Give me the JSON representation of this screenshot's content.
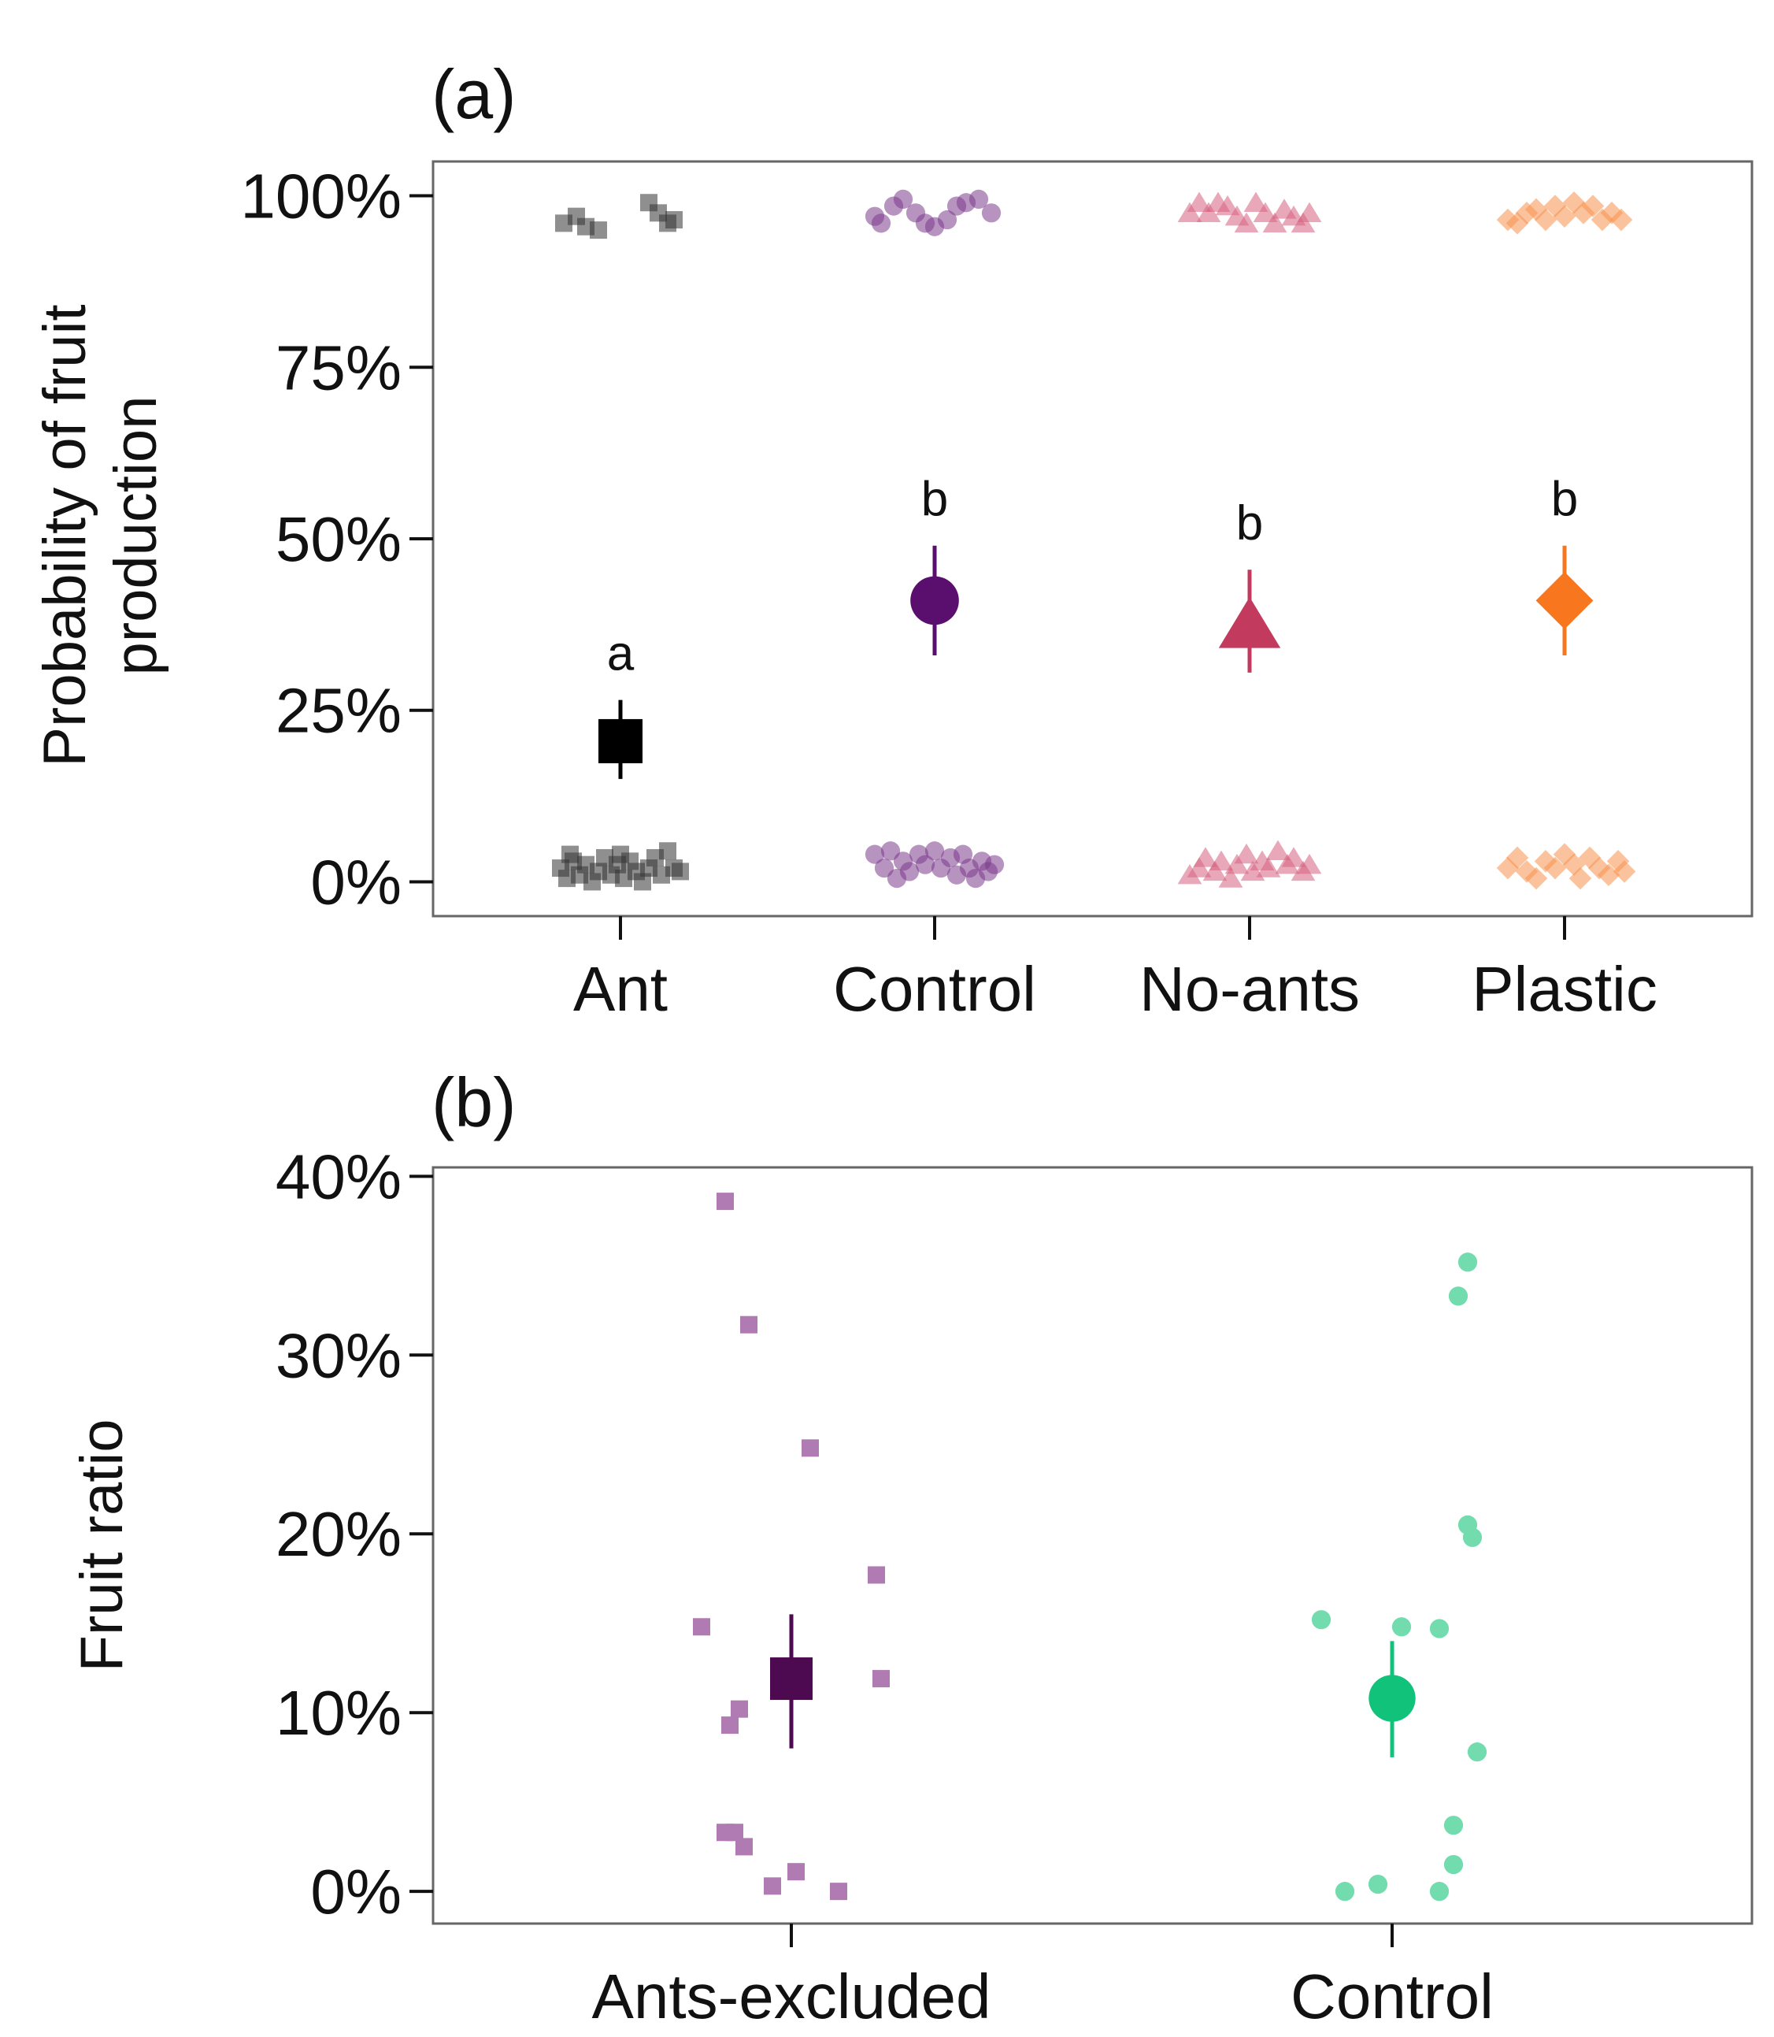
{
  "chart_data": [
    {
      "id": "a",
      "panel_label": "(a)",
      "type": "scatter",
      "ylabel": [
        "Probability of fruit",
        "production"
      ],
      "xlabel": "",
      "categories": [
        "Ant",
        "Control",
        "No-ants",
        "Plastic"
      ],
      "ylim": [
        -0.05,
        1.05
      ],
      "yticks": [
        0,
        0.25,
        0.5,
        0.75,
        1.0
      ],
      "ytick_labels": [
        "0%",
        "25%",
        "50%",
        "75%",
        "100%"
      ],
      "grid": false,
      "legend": "none",
      "series": [
        {
          "name": "Ant",
          "shape": "square",
          "color": "#000000",
          "point_color": "#333333",
          "mean": 0.205,
          "ci": [
            0.15,
            0.265
          ],
          "significance": "a",
          "points": [
            {
              "x": -0.18,
              "y": 0.96
            },
            {
              "x": -0.14,
              "y": 0.97
            },
            {
              "x": -0.11,
              "y": 0.955
            },
            {
              "x": -0.07,
              "y": 0.95
            },
            {
              "x": 0.09,
              "y": 0.99
            },
            {
              "x": 0.12,
              "y": 0.975
            },
            {
              "x": 0.15,
              "y": 0.96
            },
            {
              "x": 0.17,
              "y": 0.965
            },
            {
              "x": -0.19,
              "y": 0.02
            },
            {
              "x": -0.17,
              "y": 0.005
            },
            {
              "x": -0.15,
              "y": 0.03
            },
            {
              "x": -0.13,
              "y": 0.01
            },
            {
              "x": -0.11,
              "y": 0.025
            },
            {
              "x": -0.09,
              "y": 0.0
            },
            {
              "x": -0.07,
              "y": 0.015
            },
            {
              "x": -0.05,
              "y": 0.035
            },
            {
              "x": -0.03,
              "y": 0.01
            },
            {
              "x": -0.01,
              "y": 0.025
            },
            {
              "x": 0.01,
              "y": 0.005
            },
            {
              "x": 0.03,
              "y": 0.03
            },
            {
              "x": 0.05,
              "y": 0.015
            },
            {
              "x": 0.07,
              "y": 0.0
            },
            {
              "x": 0.09,
              "y": 0.02
            },
            {
              "x": 0.11,
              "y": 0.035
            },
            {
              "x": 0.13,
              "y": 0.01
            },
            {
              "x": 0.15,
              "y": 0.045
            },
            {
              "x": 0.17,
              "y": 0.02
            },
            {
              "x": 0.19,
              "y": 0.015
            },
            {
              "x": -0.16,
              "y": 0.04
            },
            {
              "x": 0.0,
              "y": 0.04
            }
          ]
        },
        {
          "name": "Control",
          "shape": "circle",
          "color": "#5a0f6e",
          "point_color": "#7b3a8c",
          "mean": 0.41,
          "ci": [
            0.33,
            0.49
          ],
          "significance": "b",
          "points": [
            {
              "x": -0.19,
              "y": 0.97
            },
            {
              "x": -0.17,
              "y": 0.96
            },
            {
              "x": -0.13,
              "y": 0.985
            },
            {
              "x": -0.1,
              "y": 0.995
            },
            {
              "x": -0.06,
              "y": 0.975
            },
            {
              "x": -0.03,
              "y": 0.96
            },
            {
              "x": 0.0,
              "y": 0.955
            },
            {
              "x": 0.04,
              "y": 0.965
            },
            {
              "x": 0.07,
              "y": 0.985
            },
            {
              "x": 0.1,
              "y": 0.99
            },
            {
              "x": 0.14,
              "y": 0.995
            },
            {
              "x": 0.18,
              "y": 0.975
            },
            {
              "x": -0.19,
              "y": 0.04
            },
            {
              "x": -0.16,
              "y": 0.02
            },
            {
              "x": -0.14,
              "y": 0.045
            },
            {
              "x": -0.12,
              "y": 0.005
            },
            {
              "x": -0.1,
              "y": 0.03
            },
            {
              "x": -0.08,
              "y": 0.015
            },
            {
              "x": -0.05,
              "y": 0.04
            },
            {
              "x": -0.03,
              "y": 0.025
            },
            {
              "x": 0.0,
              "y": 0.045
            },
            {
              "x": 0.02,
              "y": 0.02
            },
            {
              "x": 0.05,
              "y": 0.035
            },
            {
              "x": 0.07,
              "y": 0.01
            },
            {
              "x": 0.09,
              "y": 0.04
            },
            {
              "x": 0.11,
              "y": 0.02
            },
            {
              "x": 0.13,
              "y": 0.005
            },
            {
              "x": 0.15,
              "y": 0.03
            },
            {
              "x": 0.17,
              "y": 0.015
            },
            {
              "x": 0.19,
              "y": 0.025
            }
          ]
        },
        {
          "name": "No-ants",
          "shape": "triangle",
          "color": "#c23b5f",
          "point_color": "#d5617f",
          "mean": 0.375,
          "ci": [
            0.305,
            0.455
          ],
          "significance": "b",
          "points": [
            {
              "x": -0.19,
              "y": 0.975
            },
            {
              "x": -0.16,
              "y": 0.99
            },
            {
              "x": -0.13,
              "y": 0.975
            },
            {
              "x": -0.1,
              "y": 0.99
            },
            {
              "x": -0.07,
              "y": 0.985
            },
            {
              "x": -0.04,
              "y": 0.97
            },
            {
              "x": -0.01,
              "y": 0.96
            },
            {
              "x": 0.02,
              "y": 0.99
            },
            {
              "x": 0.05,
              "y": 0.975
            },
            {
              "x": 0.08,
              "y": 0.96
            },
            {
              "x": 0.11,
              "y": 0.98
            },
            {
              "x": 0.14,
              "y": 0.97
            },
            {
              "x": 0.17,
              "y": 0.96
            },
            {
              "x": 0.19,
              "y": 0.975
            },
            {
              "x": -0.19,
              "y": 0.01
            },
            {
              "x": -0.16,
              "y": 0.02
            },
            {
              "x": -0.14,
              "y": 0.035
            },
            {
              "x": -0.11,
              "y": 0.015
            },
            {
              "x": -0.09,
              "y": 0.03
            },
            {
              "x": -0.06,
              "y": 0.005
            },
            {
              "x": -0.04,
              "y": 0.025
            },
            {
              "x": -0.01,
              "y": 0.04
            },
            {
              "x": 0.01,
              "y": 0.015
            },
            {
              "x": 0.04,
              "y": 0.03
            },
            {
              "x": 0.06,
              "y": 0.02
            },
            {
              "x": 0.09,
              "y": 0.045
            },
            {
              "x": 0.12,
              "y": 0.025
            },
            {
              "x": 0.14,
              "y": 0.035
            },
            {
              "x": 0.17,
              "y": 0.015
            },
            {
              "x": 0.19,
              "y": 0.025
            }
          ]
        },
        {
          "name": "Plastic",
          "shape": "diamond",
          "color": "#f7761e",
          "point_color": "#f8924c",
          "mean": 0.41,
          "ci": [
            0.33,
            0.49
          ],
          "significance": "b",
          "points": [
            {
              "x": -0.18,
              "y": 0.965
            },
            {
              "x": -0.15,
              "y": 0.96
            },
            {
              "x": -0.12,
              "y": 0.975
            },
            {
              "x": -0.09,
              "y": 0.98
            },
            {
              "x": -0.06,
              "y": 0.965
            },
            {
              "x": -0.03,
              "y": 0.985
            },
            {
              "x": 0.0,
              "y": 0.97
            },
            {
              "x": 0.03,
              "y": 0.99
            },
            {
              "x": 0.06,
              "y": 0.975
            },
            {
              "x": 0.09,
              "y": 0.985
            },
            {
              "x": 0.12,
              "y": 0.965
            },
            {
              "x": 0.15,
              "y": 0.975
            },
            {
              "x": 0.18,
              "y": 0.965
            },
            {
              "x": -0.18,
              "y": 0.02
            },
            {
              "x": -0.15,
              "y": 0.035
            },
            {
              "x": -0.12,
              "y": 0.015
            },
            {
              "x": -0.09,
              "y": 0.005
            },
            {
              "x": -0.06,
              "y": 0.03
            },
            {
              "x": -0.03,
              "y": 0.02
            },
            {
              "x": 0.0,
              "y": 0.04
            },
            {
              "x": 0.03,
              "y": 0.025
            },
            {
              "x": 0.05,
              "y": 0.005
            },
            {
              "x": 0.08,
              "y": 0.035
            },
            {
              "x": 0.11,
              "y": 0.02
            },
            {
              "x": 0.14,
              "y": 0.01
            },
            {
              "x": 0.17,
              "y": 0.03
            },
            {
              "x": 0.19,
              "y": 0.015
            }
          ]
        }
      ]
    },
    {
      "id": "b",
      "panel_label": "(b)",
      "type": "scatter",
      "ylabel": [
        "Fruit ratio"
      ],
      "xlabel": "",
      "categories": [
        "Ants-excluded",
        "Control"
      ],
      "ylim": [
        -0.018,
        0.405
      ],
      "yticks": [
        0,
        0.1,
        0.2,
        0.3,
        0.4
      ],
      "ytick_labels": [
        "0%",
        "10%",
        "20%",
        "30%",
        "40%"
      ],
      "grid": false,
      "legend": "none",
      "series": [
        {
          "name": "Ants-excluded",
          "shape": "square",
          "color": "#4d0a50",
          "point_color": "#b07ab2",
          "mean": 0.119,
          "ci": [
            0.08,
            0.155
          ],
          "significance": "",
          "points": [
            {
              "x": -0.14,
              "y": 0.386
            },
            {
              "x": -0.09,
              "y": 0.317
            },
            {
              "x": 0.04,
              "y": 0.248
            },
            {
              "x": 0.18,
              "y": 0.177
            },
            {
              "x": -0.19,
              "y": 0.148
            },
            {
              "x": 0.19,
              "y": 0.119
            },
            {
              "x": -0.11,
              "y": 0.102
            },
            {
              "x": -0.13,
              "y": 0.093
            },
            {
              "x": -0.14,
              "y": 0.033
            },
            {
              "x": -0.12,
              "y": 0.033
            },
            {
              "x": -0.1,
              "y": 0.025
            },
            {
              "x": 0.01,
              "y": 0.011
            },
            {
              "x": -0.04,
              "y": 0.003
            },
            {
              "x": 0.1,
              "y": 0.0
            }
          ]
        },
        {
          "name": "Control",
          "shape": "circle",
          "color": "#10c27a",
          "point_color": "#72dcae",
          "mean": 0.108,
          "ci": [
            0.075,
            0.14
          ],
          "significance": "",
          "points": [
            {
              "x": 0.16,
              "y": 0.352
            },
            {
              "x": 0.14,
              "y": 0.333
            },
            {
              "x": 0.16,
              "y": 0.205
            },
            {
              "x": 0.17,
              "y": 0.198
            },
            {
              "x": -0.15,
              "y": 0.152
            },
            {
              "x": 0.02,
              "y": 0.148
            },
            {
              "x": 0.1,
              "y": 0.147
            },
            {
              "x": 0.18,
              "y": 0.078
            },
            {
              "x": 0.13,
              "y": 0.037
            },
            {
              "x": 0.13,
              "y": 0.015
            },
            {
              "x": -0.1,
              "y": 0.0
            },
            {
              "x": -0.03,
              "y": 0.004
            },
            {
              "x": 0.1,
              "y": 0.0
            }
          ]
        }
      ]
    }
  ]
}
